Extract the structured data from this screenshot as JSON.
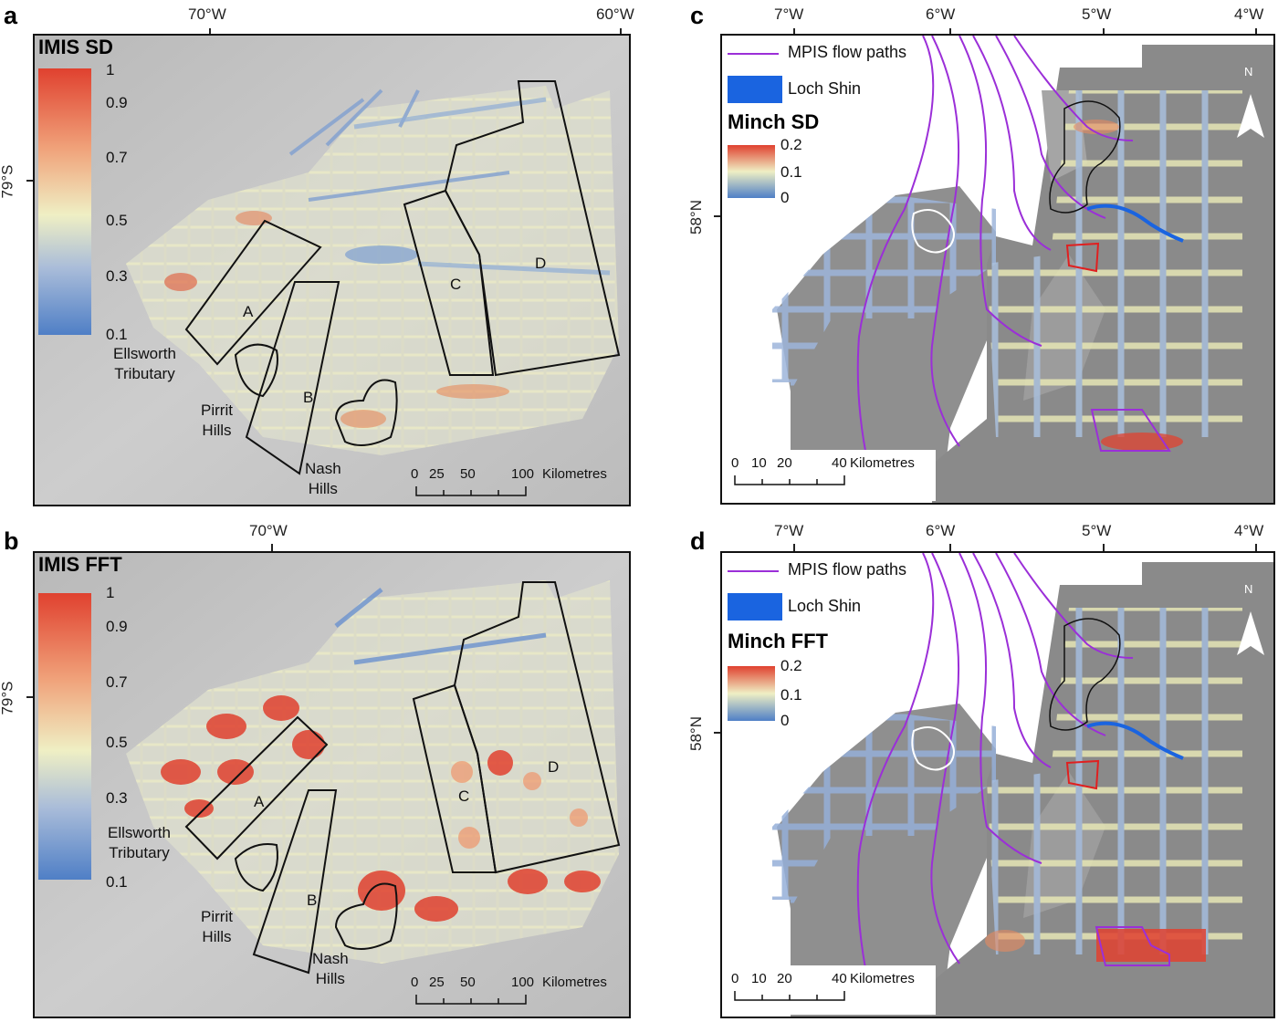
{
  "colors": {
    "frame": "#111111",
    "hillshade": "#c2c2c2",
    "low": "#4f7fc6",
    "mid": "#efefc4",
    "high": "#e0412f",
    "flow_paths": "#9b2fd8",
    "loch_shin": "#1a64e0",
    "outline_white": "#ffffff",
    "outline_red": "#e02020",
    "outline_black": "#111111"
  },
  "panels": {
    "a": {
      "letter": "a",
      "top_lon": [
        "70°W",
        "60°W"
      ],
      "side_lat": "79°S",
      "legend_title": "IMIS SD",
      "legend_values": [
        "1",
        "0.9",
        "0.7",
        "0.5",
        "0.3",
        "0.1"
      ],
      "regions": [
        "A",
        "B",
        "C",
        "D"
      ],
      "place_names": [
        "Ellsworth\nTributary",
        "Pirrit\nHills",
        "Nash\nHills"
      ],
      "scalebar": {
        "ticks": [
          "0",
          "25",
          "50",
          "100"
        ],
        "units": "Kilometres"
      }
    },
    "b": {
      "letter": "b",
      "top_lon": [
        "70°W"
      ],
      "side_lat": "79°S",
      "legend_title": "IMIS FFT",
      "legend_values": [
        "1",
        "0.9",
        "0.7",
        "0.5",
        "0.3",
        "0.1"
      ],
      "regions": [
        "A",
        "B",
        "C",
        "D"
      ],
      "place_names": [
        "Ellsworth\nTributary",
        "Pirrit\nHills",
        "Nash\nHills"
      ],
      "scalebar": {
        "ticks": [
          "0",
          "25",
          "50",
          "100"
        ],
        "units": "Kilometres"
      }
    },
    "c": {
      "letter": "c",
      "top_lon": [
        "7°W",
        "6°W",
        "5°W",
        "4°W"
      ],
      "side_lat": "58°N",
      "legend_items": [
        "MPIS flow paths",
        "Loch Shin"
      ],
      "legend_title": "Minch SD",
      "legend_values": [
        "0.2",
        "0.1",
        "0"
      ],
      "north_label": "N",
      "scalebar": {
        "ticks": [
          "0",
          "10",
          "20",
          "40"
        ],
        "units": "Kilometres"
      }
    },
    "d": {
      "letter": "d",
      "top_lon": [
        "7°W",
        "6°W",
        "5°W",
        "4°W"
      ],
      "side_lat": "58°N",
      "legend_items": [
        "MPIS flow paths",
        "Loch Shin"
      ],
      "legend_title": "Minch FFT",
      "legend_values": [
        "0.2",
        "0.1",
        "0"
      ],
      "north_label": "N",
      "scalebar": {
        "ticks": [
          "0",
          "10",
          "20",
          "40"
        ],
        "units": "Kilometres"
      }
    }
  }
}
